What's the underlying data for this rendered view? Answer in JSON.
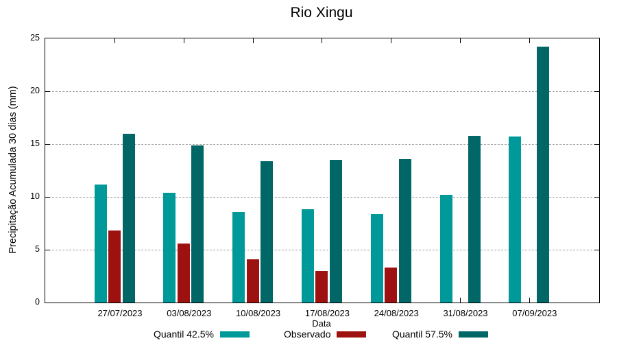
{
  "chart_data": {
    "type": "bar",
    "title": "Rio Xingu",
    "xlabel": "Data",
    "ylabel": "Precipitação Acumulada 30 dias (mm)",
    "ylim": [
      0,
      25
    ],
    "yticks": [
      0,
      5,
      10,
      15,
      20,
      25
    ],
    "gridlines_at": [
      5,
      10,
      15,
      20
    ],
    "grid": "horizontal dashed",
    "legend_position": "bottom",
    "categories": [
      "27/07/2023",
      "03/08/2023",
      "10/08/2023",
      "17/08/2023",
      "24/08/2023",
      "31/08/2023",
      "07/09/2023"
    ],
    "series": [
      {
        "name": "Quantil 42.5%",
        "color": "#009999",
        "values": [
          11.2,
          10.4,
          8.6,
          8.8,
          8.4,
          10.2,
          15.7
        ]
      },
      {
        "name": "Observado",
        "color": "#9d1111",
        "values": [
          6.8,
          5.6,
          4.1,
          3.0,
          3.3,
          null,
          null
        ]
      },
      {
        "name": "Quantil 57.5%",
        "color": "#006666",
        "values": [
          16.0,
          14.9,
          13.4,
          13.5,
          13.6,
          15.8,
          24.2
        ]
      }
    ]
  },
  "colors": {
    "series_quantil_425": "#009999",
    "series_observado": "#9d1111",
    "series_quantil_575": "#006666",
    "grid": "#9e9e9e",
    "axis": "#000000",
    "background": "#ffffff",
    "text": "#000000"
  }
}
